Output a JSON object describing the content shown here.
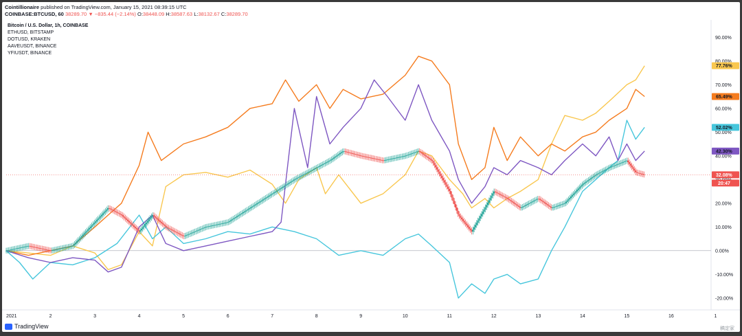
{
  "header": {
    "publisher": "Cointillionaire",
    "published_text": " published on TradingView.com, January 15, 2021 08:39:15 UTC",
    "symbol": "COINBASE:BTCUSD, 60",
    "price": "38289.70",
    "change": "▼ −835.44 (−2.14%)",
    "o_label": "O:",
    "o_value": "38448.09",
    "h_label": "H:",
    "h_value": "38587.63",
    "l_label": "L:",
    "l_value": "38132.67",
    "c_label": "C:",
    "c_value": "38289.70"
  },
  "legend": {
    "main": "Bitcoin / U.S. Dollar, 1h, COINBASE",
    "items": [
      "ETHUSD, BITSTAMP",
      "DOTUSD, KRAKEN",
      "AAVEUSDT, BINANCE",
      "YFIUSDT, BINANCE"
    ]
  },
  "footer": {
    "brand": "TradingView",
    "watermark": "稿定家"
  },
  "colors": {
    "btc_up": "#26a69a",
    "btc_down": "#ef5350",
    "eth": "#f9c74f",
    "dot": "#f57c1f",
    "aave": "#46c6dc",
    "yfi": "#7e57c2",
    "zero_line": "#b2b5be",
    "btc_price_line": "#ef5350"
  },
  "chart_data": {
    "type": "line",
    "ylim": [
      -25,
      95
    ],
    "xlim": [
      1,
      16.9
    ],
    "y_ticks": [
      "90.00%",
      "80.00%",
      "70.00%",
      "60.00%",
      "50.00%",
      "40.00%",
      "30.00%",
      "20.00%",
      "10.00%",
      "0.00%",
      "-10.00%",
      "-20.00%"
    ],
    "y_tick_values": [
      90,
      80,
      70,
      60,
      50,
      40,
      30,
      20,
      10,
      0,
      -10,
      -20
    ],
    "x_ticks": [
      "2021",
      "2",
      "3",
      "4",
      "5",
      "6",
      "7",
      "8",
      "9",
      "10",
      "11",
      "12",
      "13",
      "14",
      "15",
      "16",
      "1"
    ],
    "x_tick_values": [
      1,
      2,
      3,
      4,
      5,
      6,
      7,
      8,
      9,
      10,
      11,
      12,
      13,
      14,
      15,
      16,
      17
    ],
    "y_unit": "%",
    "series": [
      {
        "name": "ETHUSD, BITSTAMP",
        "color_key": "eth",
        "last_label": "77.76%",
        "x": [
          1,
          1.5,
          2,
          2.5,
          3,
          3.3,
          3.6,
          4,
          4.3,
          4.6,
          5,
          5.5,
          6,
          6.5,
          7,
          7.3,
          7.6,
          8,
          8.2,
          8.5,
          9,
          9.5,
          10,
          10.3,
          10.6,
          11,
          11.3,
          11.5,
          11.8,
          12,
          12.3,
          12.6,
          13,
          13.3,
          13.6,
          14,
          14.3,
          14.6,
          15,
          15.2,
          15.4
        ],
        "y": [
          0,
          -1,
          -2,
          2,
          -1,
          -8,
          -6,
          8,
          2,
          27,
          32,
          33,
          31,
          34,
          28,
          20,
          30,
          35,
          24,
          32,
          20,
          24,
          32,
          42,
          40,
          30,
          24,
          18,
          22,
          18,
          22,
          25,
          30,
          45,
          57,
          55,
          58,
          63,
          70,
          72,
          78
        ]
      },
      {
        "name": "DOTUSD, KRAKEN",
        "color_key": "dot",
        "last_label": "65.49%",
        "x": [
          1,
          1.5,
          2,
          2.5,
          3,
          3.3,
          3.6,
          4,
          4.2,
          4.5,
          5,
          5.5,
          6,
          6.5,
          7,
          7.3,
          7.6,
          8,
          8.3,
          8.6,
          9,
          9.5,
          10,
          10.3,
          10.6,
          11,
          11.2,
          11.5,
          11.8,
          12,
          12.3,
          12.6,
          13,
          13.3,
          13.6,
          14,
          14.3,
          14.6,
          15,
          15.2,
          15.4
        ],
        "y": [
          0,
          -2,
          0,
          2,
          10,
          15,
          20,
          36,
          50,
          38,
          45,
          48,
          52,
          60,
          62,
          72,
          63,
          70,
          60,
          68,
          64,
          66,
          74,
          82,
          80,
          70,
          45,
          30,
          35,
          52,
          38,
          48,
          40,
          45,
          42,
          48,
          50,
          55,
          60,
          68,
          65
        ]
      },
      {
        "name": "AAVEUSDT, BINANCE",
        "color_key": "aave",
        "last_label": "52.02%",
        "x": [
          1,
          1.3,
          1.6,
          2,
          2.5,
          3,
          3.5,
          4,
          4.3,
          4.6,
          5,
          5.5,
          6,
          6.5,
          7,
          7.5,
          8,
          8.5,
          9,
          9.5,
          10,
          10.3,
          10.6,
          11,
          11.2,
          11.5,
          11.8,
          12,
          12.3,
          12.6,
          13,
          13.3,
          13.6,
          14,
          14.3,
          14.6,
          14.8,
          15,
          15.2,
          15.4
        ],
        "y": [
          0,
          -5,
          -12,
          -5,
          -6,
          -3,
          3,
          15,
          5,
          10,
          3,
          5,
          8,
          7,
          10,
          8,
          5,
          -2,
          0,
          -2,
          5,
          7,
          2,
          -5,
          -20,
          -14,
          -18,
          -12,
          -10,
          -14,
          -12,
          0,
          10,
          25,
          30,
          35,
          38,
          55,
          47,
          52
        ]
      },
      {
        "name": "YFIUSDT, BINANCE",
        "color_key": "yfi",
        "last_label": "42.30%",
        "x": [
          1,
          1.5,
          2,
          2.5,
          3,
          3.3,
          3.6,
          4,
          4.3,
          4.6,
          5,
          5.5,
          6,
          6.5,
          7,
          7.2,
          7.5,
          7.8,
          8,
          8.3,
          8.6,
          9,
          9.3,
          9.6,
          10,
          10.3,
          10.6,
          11,
          11.2,
          11.5,
          11.8,
          12,
          12.3,
          12.6,
          13,
          13.3,
          13.6,
          14,
          14.3,
          14.6,
          14.8,
          15,
          15.2,
          15.4
        ],
        "y": [
          0,
          -3,
          -5,
          -3,
          -4,
          -9,
          -7,
          10,
          15,
          3,
          0,
          2,
          4,
          6,
          8,
          12,
          60,
          35,
          65,
          45,
          52,
          60,
          72,
          65,
          55,
          70,
          55,
          42,
          30,
          20,
          27,
          35,
          32,
          38,
          35,
          32,
          38,
          45,
          40,
          48,
          38,
          45,
          38,
          42
        ]
      },
      {
        "name": "Bitcoin / U.S. Dollar, 1h, COINBASE",
        "color_key": "btc_up",
        "candles": true,
        "last_label": "32.08%",
        "countdown": "20:47",
        "x": [
          1,
          1.5,
          2,
          2.5,
          3,
          3.3,
          3.6,
          4,
          4.3,
          4.6,
          5,
          5.5,
          6,
          6.5,
          7,
          7.5,
          8,
          8.3,
          8.6,
          9,
          9.5,
          10,
          10.3,
          10.6,
          11,
          11.2,
          11.5,
          11.8,
          12,
          12.3,
          12.6,
          13,
          13.3,
          13.6,
          14,
          14.3,
          14.6,
          15,
          15.2,
          15.4
        ],
        "y": [
          0,
          2,
          0,
          2,
          12,
          18,
          15,
          8,
          15,
          10,
          6,
          10,
          12,
          18,
          24,
          30,
          35,
          38,
          42,
          40,
          38,
          40,
          42,
          38,
          25,
          15,
          8,
          18,
          25,
          22,
          18,
          22,
          18,
          20,
          28,
          32,
          35,
          38,
          33,
          32
        ]
      }
    ]
  }
}
